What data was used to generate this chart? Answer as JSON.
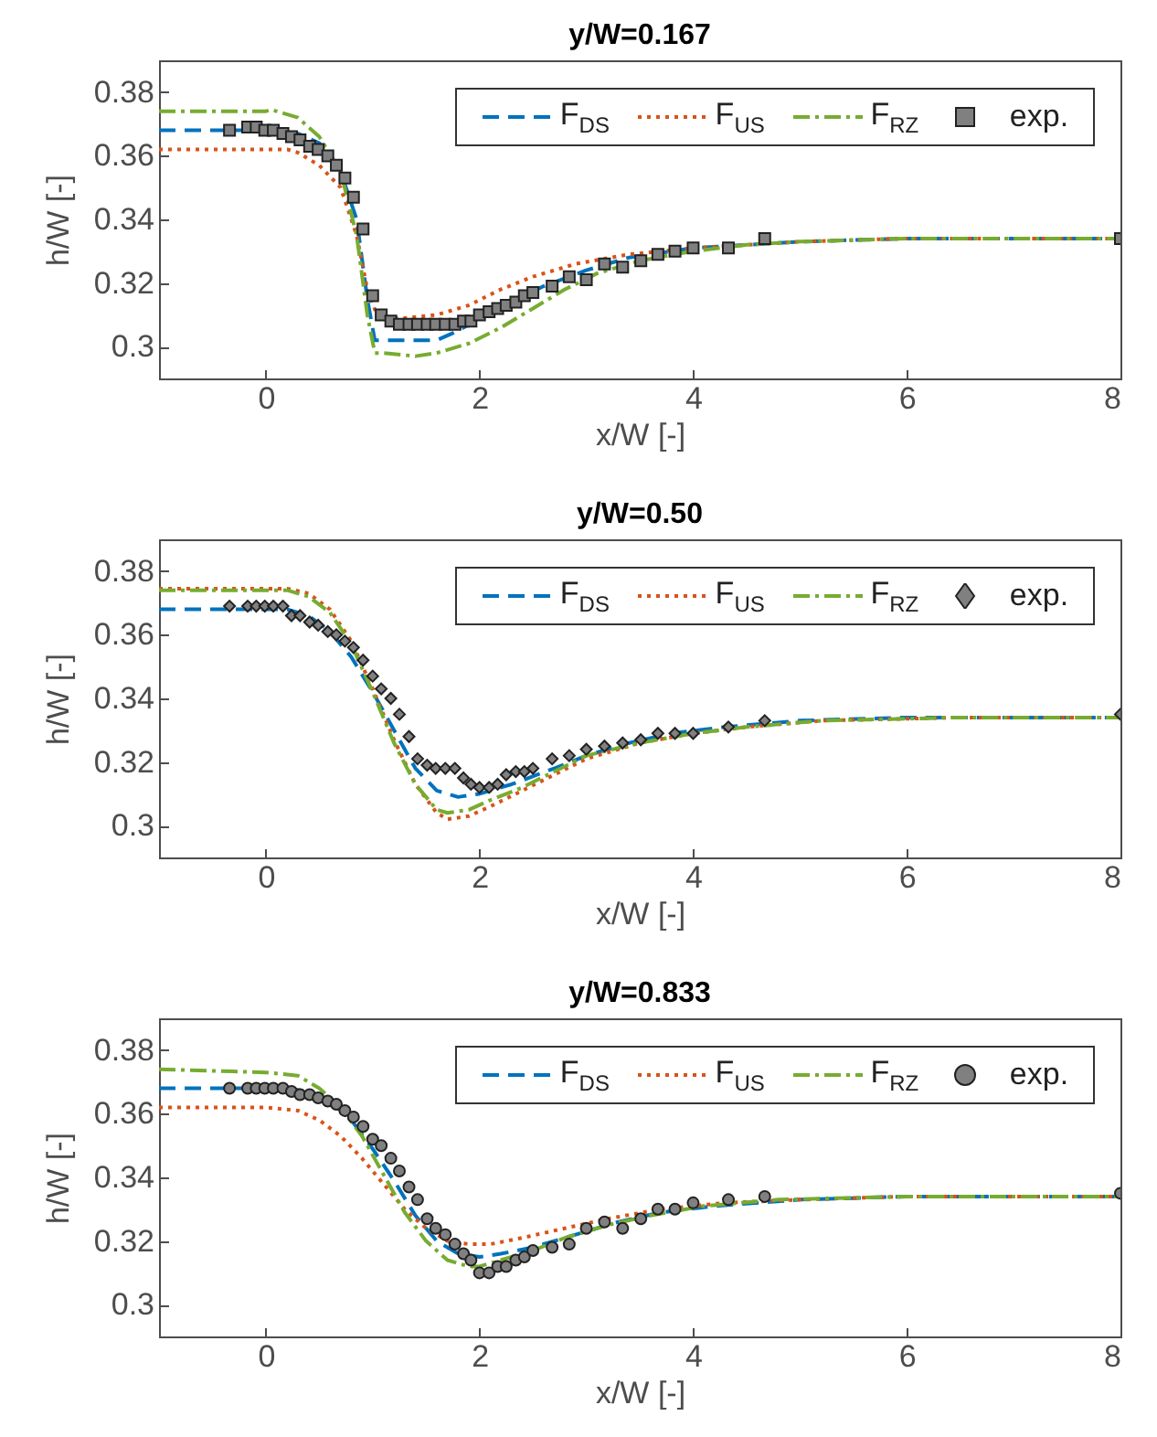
{
  "chart_data": [
    {
      "type": "line",
      "title": "y/W=0.167",
      "xlabel": "x/W [-]",
      "ylabel": "h/W [-]",
      "xlim": [
        -1,
        8
      ],
      "ylim": [
        0.29,
        0.39
      ],
      "xticks": [
        0,
        2,
        4,
        6,
        8
      ],
      "yticks": [
        0.3,
        0.32,
        0.34,
        0.36,
        0.38
      ],
      "grid": false,
      "legend": "top right",
      "series": [
        {
          "name": "F$_{DS}$",
          "color": "#0072bd",
          "type": "line",
          "line_style": "dashed",
          "x": [
            -1,
            0,
            0.3,
            0.5,
            0.7,
            0.85,
            0.95,
            1.02,
            1.2,
            1.6,
            1.8,
            2.0,
            2.3,
            2.6,
            3.0,
            3.4,
            4.0,
            4.5,
            5,
            6,
            8
          ],
          "values": [
            0.368,
            0.368,
            0.367,
            0.364,
            0.355,
            0.34,
            0.315,
            0.302,
            0.302,
            0.302,
            0.305,
            0.309,
            0.314,
            0.319,
            0.324,
            0.328,
            0.331,
            0.332,
            0.333,
            0.334,
            0.334
          ]
        },
        {
          "name": "F$_{US}$",
          "color": "#d95319",
          "type": "line",
          "line_style": "dotted",
          "x": [
            -1,
            0.2,
            0.3,
            0.5,
            0.7,
            0.85,
            0.95,
            1.05,
            1.3,
            1.6,
            1.9,
            2.2,
            2.5,
            2.9,
            3.4,
            4,
            5,
            6,
            8
          ],
          "values": [
            0.362,
            0.362,
            0.361,
            0.357,
            0.35,
            0.335,
            0.318,
            0.309,
            0.309,
            0.31,
            0.313,
            0.318,
            0.322,
            0.326,
            0.329,
            0.331,
            0.333,
            0.334,
            0.334
          ]
        },
        {
          "name": "F$_{RZ}$",
          "color": "#77ac30",
          "type": "line",
          "line_style": "dashdot",
          "x": [
            -1,
            0,
            0.05,
            0.3,
            0.5,
            0.7,
            0.85,
            0.95,
            1.02,
            1.1,
            1.4,
            1.6,
            1.9,
            2.2,
            2.5,
            2.8,
            3.1,
            3.5,
            4,
            4.5,
            5,
            6,
            8
          ],
          "values": [
            0.374,
            0.374,
            0.3745,
            0.372,
            0.366,
            0.355,
            0.335,
            0.31,
            0.298,
            0.298,
            0.297,
            0.298,
            0.301,
            0.306,
            0.312,
            0.318,
            0.323,
            0.327,
            0.33,
            0.332,
            0.333,
            0.334,
            0.334
          ]
        },
        {
          "name": "exp.",
          "color": "#808080",
          "type": "scatter",
          "marker": "square",
          "x": [
            -0.34,
            -0.17,
            -0.09,
            -0.01,
            0.07,
            0.16,
            0.24,
            0.32,
            0.41,
            0.49,
            0.58,
            0.66,
            0.74,
            0.82,
            0.91,
            1.0,
            1.08,
            1.17,
            1.25,
            1.34,
            1.42,
            1.51,
            1.59,
            1.68,
            1.77,
            1.85,
            1.92,
            2.0,
            2.09,
            2.17,
            2.25,
            2.34,
            2.42,
            2.5,
            2.68,
            2.84,
            3.0,
            3.17,
            3.34,
            3.51,
            3.67,
            3.83,
            4.0,
            4.33,
            4.67,
            8.0
          ],
          "values": [
            0.368,
            0.369,
            0.369,
            0.368,
            0.368,
            0.367,
            0.366,
            0.365,
            0.363,
            0.362,
            0.36,
            0.357,
            0.353,
            0.347,
            0.337,
            0.316,
            0.31,
            0.308,
            0.307,
            0.307,
            0.307,
            0.307,
            0.307,
            0.307,
            0.307,
            0.308,
            0.308,
            0.31,
            0.311,
            0.312,
            0.313,
            0.314,
            0.316,
            0.317,
            0.319,
            0.322,
            0.321,
            0.326,
            0.325,
            0.327,
            0.329,
            0.33,
            0.331,
            0.331,
            0.334,
            0.334
          ]
        }
      ]
    },
    {
      "type": "line",
      "title": "y/W=0.50",
      "xlabel": "x/W [-]",
      "ylabel": "h/W [-]",
      "xlim": [
        -1,
        8
      ],
      "ylim": [
        0.29,
        0.39
      ],
      "xticks": [
        0,
        2,
        4,
        6,
        8
      ],
      "yticks": [
        0.3,
        0.32,
        0.34,
        0.36,
        0.38
      ],
      "grid": false,
      "legend": "top right",
      "series": [
        {
          "name": "F$_{DS}$",
          "color": "#0072bd",
          "type": "line",
          "line_style": "dashed",
          "x": [
            -1,
            0.2,
            0.4,
            0.6,
            0.8,
            1.0,
            1.2,
            1.4,
            1.6,
            1.8,
            2.0,
            2.3,
            2.7,
            3.0,
            3.4,
            3.8,
            4.3,
            5,
            6,
            8
          ],
          "values": [
            0.368,
            0.368,
            0.366,
            0.361,
            0.353,
            0.342,
            0.33,
            0.318,
            0.311,
            0.309,
            0.31,
            0.313,
            0.318,
            0.322,
            0.326,
            0.329,
            0.331,
            0.333,
            0.334,
            0.334
          ]
        },
        {
          "name": "F$_{US}$",
          "color": "#d95319",
          "type": "line",
          "line_style": "dotted",
          "x": [
            -1,
            0.2,
            0.4,
            0.6,
            0.8,
            1.0,
            1.2,
            1.4,
            1.6,
            1.7,
            1.9,
            2.1,
            2.4,
            2.7,
            3.0,
            3.5,
            4.0,
            4.5,
            5.2,
            6.5,
            8
          ],
          "values": [
            0.3745,
            0.3745,
            0.373,
            0.368,
            0.358,
            0.343,
            0.327,
            0.313,
            0.304,
            0.302,
            0.303,
            0.306,
            0.311,
            0.316,
            0.321,
            0.326,
            0.329,
            0.331,
            0.333,
            0.334,
            0.334
          ]
        },
        {
          "name": "F$_{RZ}$",
          "color": "#77ac30",
          "type": "line",
          "line_style": "dashdot",
          "x": [
            -1,
            0.2,
            0.4,
            0.6,
            0.8,
            1.0,
            1.2,
            1.4,
            1.6,
            1.7,
            1.9,
            2.1,
            2.4,
            2.7,
            3.0,
            3.5,
            4.0,
            4.5,
            5.2,
            6.5,
            8
          ],
          "values": [
            0.374,
            0.374,
            0.372,
            0.367,
            0.357,
            0.342,
            0.326,
            0.313,
            0.305,
            0.304,
            0.305,
            0.308,
            0.312,
            0.317,
            0.322,
            0.326,
            0.329,
            0.331,
            0.333,
            0.334,
            0.334
          ]
        },
        {
          "name": "exp.",
          "color": "#808080",
          "type": "scatter",
          "marker": "diamond",
          "x": [
            -0.34,
            -0.17,
            -0.09,
            -0.01,
            0.07,
            0.16,
            0.24,
            0.32,
            0.41,
            0.49,
            0.58,
            0.66,
            0.74,
            0.82,
            0.91,
            1.0,
            1.08,
            1.17,
            1.25,
            1.34,
            1.42,
            1.51,
            1.59,
            1.68,
            1.77,
            1.85,
            1.92,
            2.0,
            2.09,
            2.17,
            2.25,
            2.34,
            2.42,
            2.5,
            2.68,
            2.84,
            3.0,
            3.17,
            3.34,
            3.51,
            3.67,
            3.83,
            4.0,
            4.33,
            4.67,
            8.0
          ],
          "values": [
            0.369,
            0.369,
            0.369,
            0.369,
            0.369,
            0.369,
            0.366,
            0.366,
            0.364,
            0.363,
            0.361,
            0.36,
            0.358,
            0.356,
            0.352,
            0.347,
            0.343,
            0.34,
            0.335,
            0.328,
            0.321,
            0.319,
            0.318,
            0.318,
            0.318,
            0.315,
            0.313,
            0.312,
            0.312,
            0.313,
            0.316,
            0.317,
            0.317,
            0.318,
            0.321,
            0.322,
            0.324,
            0.325,
            0.326,
            0.327,
            0.329,
            0.329,
            0.329,
            0.331,
            0.333,
            0.335
          ]
        }
      ]
    },
    {
      "type": "line",
      "title": "y/W=0.833",
      "xlabel": "x/W [-]",
      "ylabel": "h/W [-]",
      "xlim": [
        -1,
        8
      ],
      "ylim": [
        0.29,
        0.39
      ],
      "xticks": [
        0,
        2,
        4,
        6,
        8
      ],
      "yticks": [
        0.3,
        0.32,
        0.34,
        0.36,
        0.38
      ],
      "grid": false,
      "legend": "top right",
      "series": [
        {
          "name": "F$_{DS}$",
          "color": "#0072bd",
          "type": "line",
          "line_style": "dashed",
          "x": [
            -1,
            0.2,
            0.4,
            0.6,
            0.8,
            1.0,
            1.2,
            1.4,
            1.6,
            1.8,
            2.0,
            2.2,
            2.5,
            2.9,
            3.3,
            3.7,
            4.2,
            5,
            6,
            8
          ],
          "values": [
            0.368,
            0.368,
            0.367,
            0.364,
            0.358,
            0.349,
            0.339,
            0.328,
            0.32,
            0.316,
            0.315,
            0.316,
            0.318,
            0.322,
            0.326,
            0.329,
            0.331,
            0.333,
            0.334,
            0.334
          ]
        },
        {
          "name": "F$_{US}$",
          "color": "#d95319",
          "type": "line",
          "line_style": "dotted",
          "x": [
            -1,
            0,
            0.3,
            0.5,
            0.7,
            0.9,
            1.1,
            1.3,
            1.5,
            1.7,
            1.9,
            2.1,
            2.4,
            2.8,
            3.2,
            3.7,
            4.3,
            5,
            6,
            8
          ],
          "values": [
            0.362,
            0.362,
            0.361,
            0.358,
            0.353,
            0.346,
            0.338,
            0.33,
            0.324,
            0.32,
            0.319,
            0.319,
            0.321,
            0.324,
            0.327,
            0.33,
            0.332,
            0.333,
            0.334,
            0.334
          ]
        },
        {
          "name": "F$_{RZ}$",
          "color": "#77ac30",
          "type": "line",
          "line_style": "dashdot",
          "x": [
            -1,
            0,
            0.3,
            0.5,
            0.7,
            0.9,
            1.1,
            1.3,
            1.5,
            1.7,
            1.9,
            2.0,
            2.2,
            2.5,
            2.8,
            3.2,
            3.6,
            4.1,
            4.8,
            6,
            8
          ],
          "values": [
            0.374,
            0.373,
            0.372,
            0.368,
            0.362,
            0.353,
            0.341,
            0.329,
            0.32,
            0.314,
            0.312,
            0.312,
            0.314,
            0.317,
            0.321,
            0.325,
            0.328,
            0.331,
            0.333,
            0.334,
            0.334
          ]
        },
        {
          "name": "exp.",
          "color": "#808080",
          "type": "scatter",
          "marker": "circle",
          "x": [
            -0.34,
            -0.17,
            -0.09,
            -0.01,
            0.07,
            0.16,
            0.24,
            0.32,
            0.41,
            0.49,
            0.58,
            0.66,
            0.74,
            0.82,
            0.91,
            1.0,
            1.08,
            1.17,
            1.25,
            1.34,
            1.42,
            1.51,
            1.59,
            1.68,
            1.77,
            1.85,
            1.92,
            2.0,
            2.09,
            2.17,
            2.25,
            2.34,
            2.42,
            2.5,
            2.68,
            2.84,
            3.0,
            3.17,
            3.34,
            3.51,
            3.67,
            3.83,
            4.0,
            4.33,
            4.67,
            8.0
          ],
          "values": [
            0.368,
            0.368,
            0.368,
            0.368,
            0.368,
            0.368,
            0.367,
            0.366,
            0.366,
            0.365,
            0.364,
            0.363,
            0.361,
            0.359,
            0.356,
            0.352,
            0.35,
            0.346,
            0.342,
            0.337,
            0.333,
            0.327,
            0.324,
            0.322,
            0.319,
            0.316,
            0.314,
            0.31,
            0.31,
            0.312,
            0.312,
            0.314,
            0.315,
            0.317,
            0.318,
            0.319,
            0.324,
            0.326,
            0.324,
            0.327,
            0.33,
            0.33,
            0.332,
            0.333,
            0.334,
            0.335
          ]
        }
      ]
    }
  ]
}
